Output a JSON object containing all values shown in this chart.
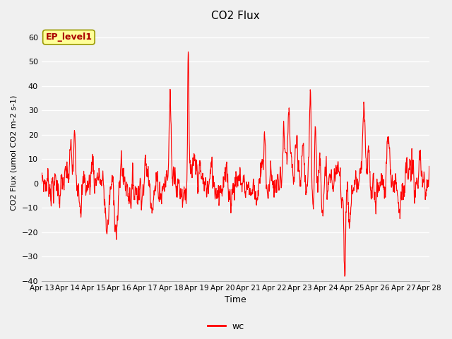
{
  "title": "CO2 Flux",
  "xlabel": "Time",
  "ylabel": "CO2 Flux (umol CO2 m-2 s-1)",
  "ylim": [
    -40,
    65
  ],
  "yticks": [
    -40,
    -30,
    -20,
    -10,
    0,
    10,
    20,
    30,
    40,
    50,
    60
  ],
  "line_color": "#FF0000",
  "line_width": 0.8,
  "bg_color": "#F0F0F0",
  "plot_bg_color": "#F0F0F0",
  "legend_label": "wc",
  "annotation_text": "EP_level1",
  "annotation_bg": "#FFFF99",
  "annotation_border": "#999900",
  "annotation_text_color": "#AA0000",
  "x_tick_labels": [
    "Apr 13",
    "Apr 14",
    "Apr 15",
    "Apr 16",
    "Apr 17",
    "Apr 18",
    "Apr 19",
    "Apr 20",
    "Apr 21",
    "Apr 22",
    "Apr 23",
    "Apr 24",
    "Apr 25",
    "Apr 26",
    "Apr 27",
    "Apr 28"
  ],
  "n_points": 1500,
  "seed": 7
}
